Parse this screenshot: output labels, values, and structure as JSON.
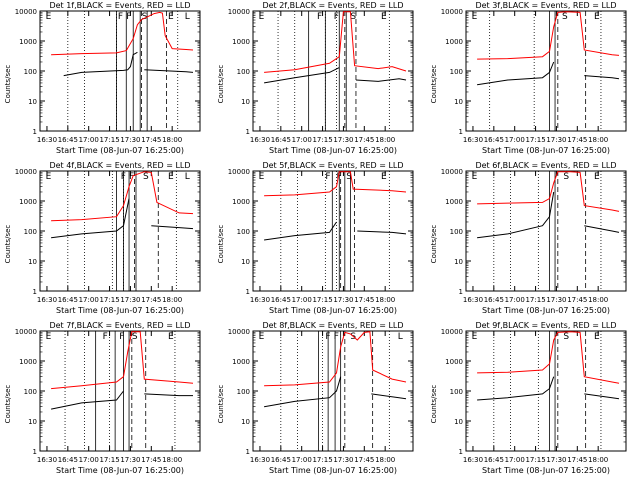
{
  "chart_data": [
    {
      "type": "line",
      "title": "Det 1f,BLACK = Events, RED = LLD",
      "xlabel": "Start Time (08-Jun-07 16:25:00)",
      "ylabel": "Counts/sec",
      "yscale": "log",
      "ylim": [
        1,
        10000
      ],
      "x_ticks": [
        "16:30",
        "16:45",
        "17:00",
        "17:15",
        "17:30",
        "17:45",
        "18:00"
      ],
      "y_ticks": [
        "1",
        "10",
        "100",
        "1000",
        "10000"
      ],
      "interval_labels": [
        "E",
        "F",
        "F",
        "S",
        "E",
        "L"
      ],
      "series": [
        {
          "color": "#000000",
          "points": [
            [
              16.0,
              null
            ],
            [
              17.0,
              70
            ],
            [
              30.0,
              90
            ],
            [
              60.0,
              105
            ],
            [
              63.0,
              110
            ],
            [
              65.0,
              140
            ],
            [
              67.0,
              350
            ],
            [
              70.0,
              420
            ],
            [
              73.0,
              null
            ],
            [
              75.0,
              110
            ],
            [
              105.0,
              95
            ],
            [
              110.0,
              90
            ]
          ]
        },
        {
          "color": "#ff0000",
          "points": [
            [
              8.0,
              350
            ],
            [
              30.0,
              380
            ],
            [
              55.0,
              400
            ],
            [
              62.0,
              480
            ],
            [
              67.0,
              1200
            ],
            [
              70.0,
              3500
            ],
            [
              73.0,
              5200
            ],
            [
              76.0,
              6000
            ],
            [
              82.0,
              8200
            ],
            [
              86.0,
              9000
            ],
            [
              88.0,
              8500
            ],
            [
              90.0,
              1500
            ],
            [
              95.0,
              560
            ],
            [
              105.0,
              520
            ],
            [
              110.0,
              500
            ]
          ]
        }
      ]
    },
    {
      "type": "line",
      "title": "Det 2f,BLACK = Events, RED = LLD",
      "xlabel": "Start Time (08-Jun-07 16:25:00)",
      "ylabel": "Counts/sec",
      "yscale": "log",
      "ylim": [
        1,
        10000
      ],
      "x_ticks": [
        "16:30",
        "16:45",
        "17:00",
        "17:15",
        "17:30",
        "17:45",
        "18:00"
      ],
      "y_ticks": [
        "1",
        "10",
        "100",
        "1000",
        "10000"
      ],
      "interval_labels": [
        "E",
        "F",
        "F",
        "S",
        "E"
      ],
      "series": [
        {
          "color": "#000000",
          "points": [
            [
              8.0,
              40
            ],
            [
              30.0,
              60
            ],
            [
              55.0,
              90
            ],
            [
              62.0,
              130
            ],
            [
              65.0,
              null
            ],
            [
              74.0,
              50
            ],
            [
              90.0,
              45
            ],
            [
              105.0,
              55
            ],
            [
              110.0,
              50
            ]
          ]
        },
        {
          "color": "#ff0000",
          "points": [
            [
              8.0,
              90
            ],
            [
              30.0,
              110
            ],
            [
              55.0,
              180
            ],
            [
              62.0,
              300
            ],
            [
              65.0,
              9500
            ],
            [
              70.0,
              9500
            ],
            [
              73.0,
              150
            ],
            [
              90.0,
              120
            ],
            [
              100.0,
              140
            ],
            [
              110.0,
              100
            ]
          ]
        }
      ]
    },
    {
      "type": "line",
      "title": "Det 3f,BLACK = Events, RED = LLD",
      "xlabel": "Start Time (08-Jun-07 16:25:00)",
      "ylabel": "Counts/sec",
      "yscale": "log",
      "ylim": [
        1,
        10000
      ],
      "x_ticks": [
        "16:30",
        "16:45",
        "17:00",
        "17:15",
        "17:30",
        "17:45",
        "18:00"
      ],
      "y_ticks": [
        "1",
        "10",
        "100",
        "1000",
        "10000"
      ],
      "interval_labels": [
        "E",
        "S",
        "E"
      ],
      "series": [
        {
          "color": "#000000",
          "points": [
            [
              8.0,
              35
            ],
            [
              30.0,
              50
            ],
            [
              55.0,
              60
            ],
            [
              60.0,
              90
            ],
            [
              63.0,
              200
            ],
            [
              66.0,
              null
            ],
            [
              85.0,
              70
            ],
            [
              105.0,
              60
            ],
            [
              110.0,
              55
            ]
          ]
        },
        {
          "color": "#ff0000",
          "points": [
            [
              8.0,
              250
            ],
            [
              30.0,
              260
            ],
            [
              55.0,
              300
            ],
            [
              60.0,
              450
            ],
            [
              63.0,
              3000
            ],
            [
              66.0,
              9000
            ],
            [
              72.0,
              9500
            ],
            [
              82.0,
              9000
            ],
            [
              85.0,
              500
            ],
            [
              105.0,
              350
            ],
            [
              110.0,
              330
            ]
          ]
        }
      ]
    },
    {
      "type": "line",
      "title": "Det 4f,BLACK = Events, RED = LLD",
      "xlabel": "Start Time (08-Jun-07 16:25:00)",
      "ylabel": "Counts/sec",
      "yscale": "log",
      "ylim": [
        1,
        10000
      ],
      "x_ticks": [
        "16:30",
        "16:45",
        "17:00",
        "17:15",
        "17:30",
        "17:45",
        "18:00"
      ],
      "y_ticks": [
        "1",
        "10",
        "100",
        "1000",
        "10000"
      ],
      "interval_labels": [
        "E",
        "F",
        "F",
        "S",
        "E",
        "L"
      ],
      "series": [
        {
          "color": "#000000",
          "points": [
            [
              8.0,
              60
            ],
            [
              30.0,
              80
            ],
            [
              55.0,
              100
            ],
            [
              60.0,
              150
            ],
            [
              64.0,
              1200
            ],
            [
              67.0,
              null
            ],
            [
              80.0,
              150
            ],
            [
              100.0,
              130
            ],
            [
              110.0,
              120
            ]
          ]
        },
        {
          "color": "#ff0000",
          "points": [
            [
              8.0,
              220
            ],
            [
              30.0,
              240
            ],
            [
              55.0,
              300
            ],
            [
              60.0,
              700
            ],
            [
              64.0,
              3000
            ],
            [
              67.0,
              7000
            ],
            [
              75.0,
              9500
            ],
            [
              80.0,
              9000
            ],
            [
              84.0,
              900
            ],
            [
              100.0,
              400
            ],
            [
              110.0,
              380
            ]
          ]
        }
      ]
    },
    {
      "type": "line",
      "title": "Det 5f,BLACK = Events, RED = LLD",
      "xlabel": "Start Time (08-Jun-07 16:25:00)",
      "ylabel": "Counts/sec",
      "yscale": "log",
      "ylim": [
        1,
        10000
      ],
      "x_ticks": [
        "16:30",
        "16:45",
        "17:00",
        "17:15",
        "17:30",
        "17:45",
        "18:00"
      ],
      "y_ticks": [
        "1",
        "10",
        "100",
        "1000",
        "10000"
      ],
      "interval_labels": [
        "E",
        "F",
        "F",
        "S",
        "E"
      ],
      "series": [
        {
          "color": "#000000",
          "points": [
            [
              8.0,
              50
            ],
            [
              30.0,
              70
            ],
            [
              55.0,
              90
            ],
            [
              60.0,
              200
            ],
            [
              62.0,
              null
            ],
            [
              75.0,
              100
            ],
            [
              100.0,
              90
            ],
            [
              110.0,
              80
            ]
          ]
        },
        {
          "color": "#ff0000",
          "points": [
            [
              8.0,
              1500
            ],
            [
              30.0,
              1600
            ],
            [
              55.0,
              2000
            ],
            [
              60.0,
              3000
            ],
            [
              62.0,
              9500
            ],
            [
              70.0,
              9500
            ],
            [
              72.0,
              2500
            ],
            [
              100.0,
              2200
            ],
            [
              110.0,
              2000
            ]
          ]
        }
      ]
    },
    {
      "type": "line",
      "title": "Det 6f,BLACK = Events, RED = LLD",
      "xlabel": "Start Time (08-Jun-07 16:25:00)",
      "ylabel": "Counts/sec",
      "yscale": "log",
      "ylim": [
        1,
        10000
      ],
      "x_ticks": [
        "16:30",
        "16:45",
        "17:00",
        "17:15",
        "17:30",
        "17:45",
        "18:00"
      ],
      "y_ticks": [
        "1",
        "10",
        "100",
        "1000",
        "10000"
      ],
      "interval_labels": [
        "E",
        "S",
        "E"
      ],
      "series": [
        {
          "color": "#000000",
          "points": [
            [
              8.0,
              60
            ],
            [
              30.0,
              80
            ],
            [
              55.0,
              150
            ],
            [
              60.0,
              300
            ],
            [
              63.0,
              2000
            ],
            [
              66.0,
              null
            ],
            [
              85.0,
              150
            ],
            [
              105.0,
              100
            ],
            [
              110.0,
              90
            ]
          ]
        },
        {
          "color": "#ff0000",
          "points": [
            [
              8.0,
              800
            ],
            [
              30.0,
              850
            ],
            [
              55.0,
              900
            ],
            [
              60.0,
              1200
            ],
            [
              63.0,
              4000
            ],
            [
              66.0,
              9500
            ],
            [
              75.0,
              9500
            ],
            [
              82.0,
              9000
            ],
            [
              85.0,
              700
            ],
            [
              105.0,
              500
            ],
            [
              110.0,
              450
            ]
          ]
        }
      ]
    },
    {
      "type": "line",
      "title": "Det 7f,BLACK = Events, RED = LLD",
      "xlabel": "Start Time (08-Jun-07 16:25:00)",
      "ylabel": "Counts/sec",
      "yscale": "log",
      "ylim": [
        1,
        10000
      ],
      "x_ticks": [
        "16:30",
        "16:45",
        "17:00",
        "17:15",
        "17:30",
        "17:45",
        "18:00"
      ],
      "y_ticks": [
        "1",
        "10",
        "100",
        "1000",
        "10000"
      ],
      "interval_labels": [
        "E",
        "F",
        "F",
        "S",
        "E"
      ],
      "series": [
        {
          "color": "#000000",
          "points": [
            [
              8.0,
              25
            ],
            [
              30.0,
              40
            ],
            [
              55.0,
              50
            ],
            [
              60.0,
              100
            ],
            [
              63.0,
              null
            ],
            [
              75.0,
              80
            ],
            [
              100.0,
              70
            ],
            [
              110.0,
              70
            ]
          ]
        },
        {
          "color": "#ff0000",
          "points": [
            [
              8.0,
              120
            ],
            [
              30.0,
              150
            ],
            [
              55.0,
              200
            ],
            [
              60.0,
              300
            ],
            [
              63.0,
              2000
            ],
            [
              66.0,
              9500
            ],
            [
              72.0,
              9500
            ],
            [
              75.0,
              250
            ],
            [
              100.0,
              200
            ],
            [
              110.0,
              180
            ]
          ]
        }
      ]
    },
    {
      "type": "line",
      "title": "Det 8f,BLACK = Events, RED = LLD",
      "xlabel": "Start Time (08-Jun-07 16:25:00)",
      "ylabel": "Counts/sec",
      "yscale": "log",
      "ylim": [
        1,
        10000
      ],
      "x_ticks": [
        "16:30",
        "16:45",
        "17:00",
        "17:15",
        "17:30",
        "17:45",
        "18:00"
      ],
      "y_ticks": [
        "1",
        "10",
        "100",
        "1000",
        "10000"
      ],
      "interval_labels": [
        "E",
        "F",
        "F",
        "S",
        "L"
      ],
      "series": [
        {
          "color": "#000000",
          "points": [
            [
              8.0,
              30
            ],
            [
              30.0,
              45
            ],
            [
              55.0,
              60
            ],
            [
              60.0,
              100
            ],
            [
              63.0,
              300
            ],
            [
              66.0,
              null
            ],
            [
              85.0,
              80
            ],
            [
              105.0,
              60
            ],
            [
              110.0,
              55
            ]
          ]
        },
        {
          "color": "#ff0000",
          "points": [
            [
              8.0,
              150
            ],
            [
              30.0,
              160
            ],
            [
              55.0,
              200
            ],
            [
              60.0,
              400
            ],
            [
              63.0,
              3000
            ],
            [
              66.0,
              9000
            ],
            [
              70.0,
              8000
            ],
            [
              75.0,
              5000
            ],
            [
              80.0,
              9000
            ],
            [
              84.0,
              9500
            ],
            [
              86.0,
              500
            ],
            [
              100.0,
              250
            ],
            [
              110.0,
              200
            ]
          ]
        }
      ]
    },
    {
      "type": "line",
      "title": "Det 9f,BLACK = Events, RED = LLD",
      "xlabel": "Start Time (08-Jun-07 16:25:00)",
      "ylabel": "Counts/sec",
      "yscale": "log",
      "ylim": [
        1,
        10000
      ],
      "x_ticks": [
        "16:30",
        "16:45",
        "17:00",
        "17:15",
        "17:30",
        "17:45",
        "18:00"
      ],
      "y_ticks": [
        "1",
        "10",
        "100",
        "1000",
        "10000"
      ],
      "interval_labels": [
        "E",
        "S",
        "E"
      ],
      "series": [
        {
          "color": "#000000",
          "points": [
            [
              8.0,
              50
            ],
            [
              30.0,
              60
            ],
            [
              55.0,
              80
            ],
            [
              60.0,
              120
            ],
            [
              63.0,
              300
            ],
            [
              66.0,
              null
            ],
            [
              85.0,
              80
            ],
            [
              105.0,
              60
            ],
            [
              110.0,
              55
            ]
          ]
        },
        {
          "color": "#ff0000",
          "points": [
            [
              8.0,
              400
            ],
            [
              30.0,
              420
            ],
            [
              55.0,
              500
            ],
            [
              60.0,
              800
            ],
            [
              63.0,
              5000
            ],
            [
              66.0,
              9000
            ],
            [
              75.0,
              9500
            ],
            [
              82.0,
              9000
            ],
            [
              85.0,
              300
            ],
            [
              105.0,
              200
            ],
            [
              110.0,
              180
            ]
          ]
        }
      ]
    }
  ]
}
